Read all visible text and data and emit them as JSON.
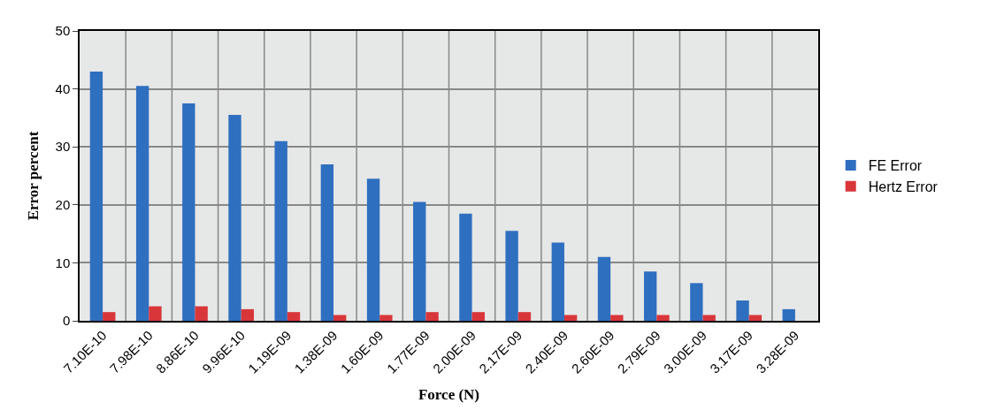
{
  "chart_data": {
    "type": "bar",
    "xlabel": "Force (N)",
    "ylabel": "Error percent",
    "categories": [
      "7.10E-10",
      "7.98E-10",
      "8.86E-10",
      "9.96E-10",
      "1.19E-09",
      "1.38E-09",
      "1.60E-09",
      "1.77E-09",
      "2.00E-09",
      "2.17E-09",
      "2.40E-09",
      "2.60E-09",
      "2.79E-09",
      "3.00E-09",
      "3.17E-09",
      "3.28E-09"
    ],
    "series": [
      {
        "name": "FE Error",
        "color": "#2e6fc0",
        "values": [
          43,
          40.5,
          37.5,
          35.5,
          31,
          27,
          24.5,
          20.5,
          18.5,
          15.5,
          13.5,
          11,
          8.5,
          6.5,
          3.5,
          2
        ]
      },
      {
        "name": "Hertz Error",
        "color": "#d9363a",
        "values": [
          1.5,
          2.5,
          2.5,
          2,
          1.5,
          1,
          1,
          1.5,
          1.5,
          1.5,
          1,
          1,
          1,
          1,
          1,
          0
        ]
      }
    ],
    "ylim": [
      0,
      50
    ],
    "yticks": [
      0,
      10,
      20,
      30,
      40,
      50
    ],
    "grid": true,
    "legend": "right"
  }
}
